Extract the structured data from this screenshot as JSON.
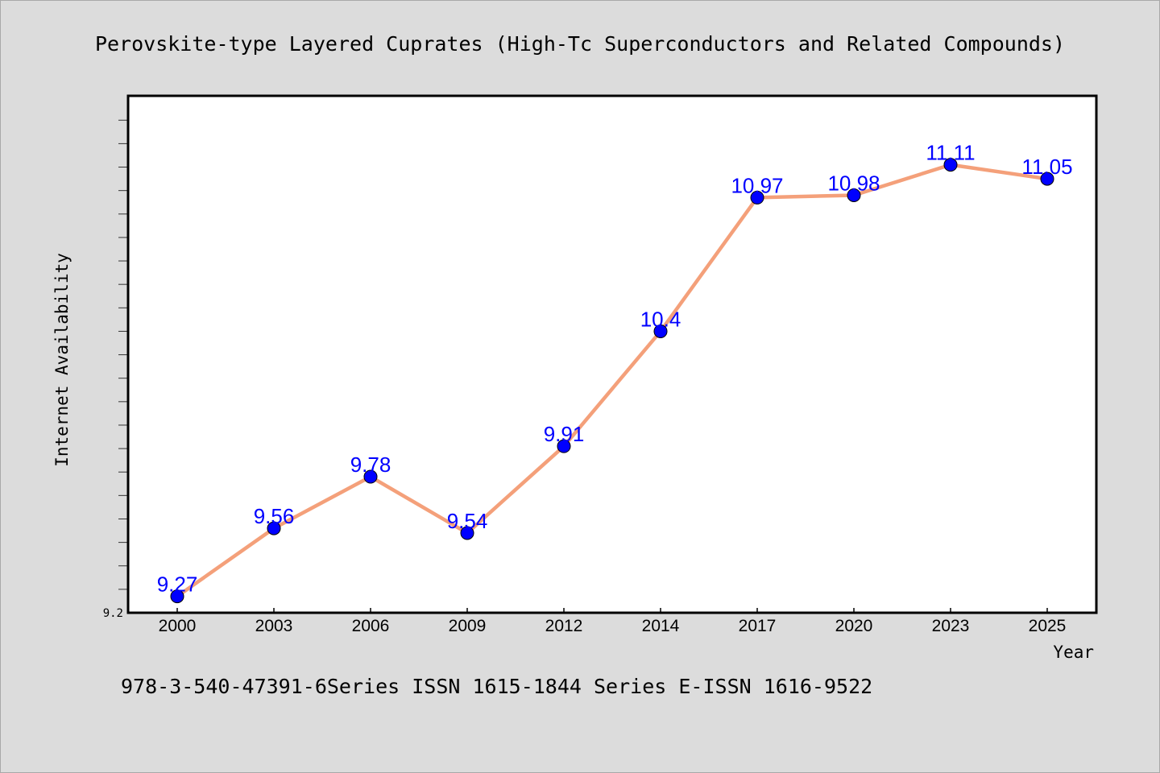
{
  "footer_text": "978-3-540-47391-6Series ISSN 1615-1844 Series E-ISSN 1616-9522",
  "colors": {
    "background": "#dcdcdc",
    "plot_background": "#ffffff",
    "line": "#f4a07a",
    "marker": "#0000ff",
    "data_label": "#0000ff"
  },
  "chart_data": {
    "type": "line",
    "title": "Perovskite-type Layered Cuprates (High-Tc Superconductors and Related Compounds)",
    "xlabel": "Year",
    "ylabel": "Internet Availability",
    "categories": [
      "2000",
      "2003",
      "2006",
      "2009",
      "2012",
      "2014",
      "2017",
      "2020",
      "2023",
      "2025"
    ],
    "series": [
      {
        "values": [
          9.27,
          9.56,
          9.78,
          9.54,
          9.91,
          10.4,
          10.97,
          10.98,
          11.11,
          11.05
        ]
      }
    ],
    "ylim": [
      9.2,
      11.4
    ],
    "ytick_labels": [
      "9.2"
    ],
    "minor_ytick_step": 0.1,
    "data_labels": [
      "9.27",
      "9.56",
      "9.78",
      "9.54",
      "9.91",
      "10.4",
      "10.97",
      "10.98",
      "11.11",
      "11.05"
    ],
    "grid": false,
    "legend": "none",
    "markers": "circle"
  }
}
